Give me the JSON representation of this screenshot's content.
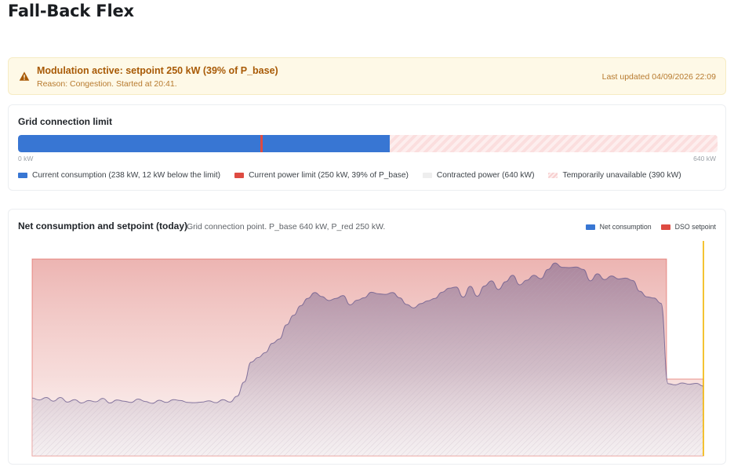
{
  "page": {
    "title": "Fall-Back Flex"
  },
  "alert": {
    "title": "Modulation active: setpoint 250 kW (39% of P_base)",
    "reason": "Reason: Congestion. Started at 20:41.",
    "updated": "Last updated 04/09/2026 22:09",
    "icon": "warning-icon"
  },
  "limit_card": {
    "title": "Grid connection limit",
    "min_label": "0 kW",
    "max_label": "640 kW",
    "max_kw": 640,
    "consumption_kw": 238,
    "limit_kw": 250,
    "legend": {
      "consumption": "Current consumption (238 kW, 12 kW below the limit)",
      "limit": "Current power limit (250 kW, 39% of P_base)",
      "contracted": "Contracted power (640 kW)",
      "unavailable": "Temporarily unavailable (390 kW)"
    }
  },
  "chart_card": {
    "title": "Net consumption and setpoint (today)",
    "subtitle": "Grid connection point. P_base 640 kW, P_red 250 kW.",
    "legend": {
      "net": "Net consumption",
      "dso": "DSO setpoint"
    }
  },
  "colors": {
    "consumption": "#3876d3",
    "limit": "#de4b42",
    "contracted": "#eeeeee",
    "unavailable": "#f7cfcf",
    "now_line": "#f2b400",
    "alert_text": "#a85a06"
  },
  "chart_data": {
    "type": "area",
    "y_range": [
      0,
      700
    ],
    "series": [
      {
        "name": "DSO setpoint",
        "color": "#de4b42",
        "values": [
          640,
          640,
          640,
          640,
          640,
          640,
          640,
          640,
          640,
          640,
          640,
          640,
          640,
          640,
          640,
          640,
          640,
          640,
          640,
          640,
          640,
          640,
          640,
          640,
          640,
          640,
          640,
          640,
          640,
          640,
          640,
          640,
          640,
          640,
          640,
          640,
          640,
          640,
          640,
          640,
          640,
          640,
          640,
          640,
          640,
          640,
          640,
          640,
          640,
          640,
          640,
          640,
          640,
          640,
          640,
          640,
          640,
          640,
          640,
          640,
          640,
          640,
          640,
          640,
          640,
          640,
          640,
          640,
          640,
          640,
          640,
          640,
          640,
          640,
          640,
          640,
          640,
          640,
          640,
          640,
          640,
          640,
          640,
          640,
          640,
          640,
          640,
          640,
          640,
          640,
          250,
          250,
          250,
          250,
          250,
          250
        ]
      },
      {
        "name": "Net consumption",
        "color": "#3876d3",
        "values": [
          188,
          182,
          190,
          178,
          190,
          175,
          183,
          172,
          180,
          176,
          187,
          172,
          182,
          178,
          174,
          185,
          177,
          171,
          181,
          174,
          183,
          180,
          174,
          173,
          175,
          179,
          173,
          183,
          175,
          194,
          240,
          305,
          320,
          336,
          366,
          380,
          426,
          457,
          488,
          512,
          531,
          518,
          505,
          512,
          521,
          491,
          506,
          514,
          532,
          527,
          525,
          531,
          514,
          492,
          481,
          495,
          504,
          512,
          532,
          545,
          549,
          516,
          551,
          519,
          552,
          569,
          541,
          566,
          587,
          556,
          571,
          587,
          576,
          606,
          627,
          613,
          612,
          614,
          606,
          569,
          592,
          573,
          585,
          575,
          578,
          570,
          535,
          517,
          513,
          496,
          235,
          231,
          237,
          233,
          236,
          227
        ]
      }
    ]
  }
}
